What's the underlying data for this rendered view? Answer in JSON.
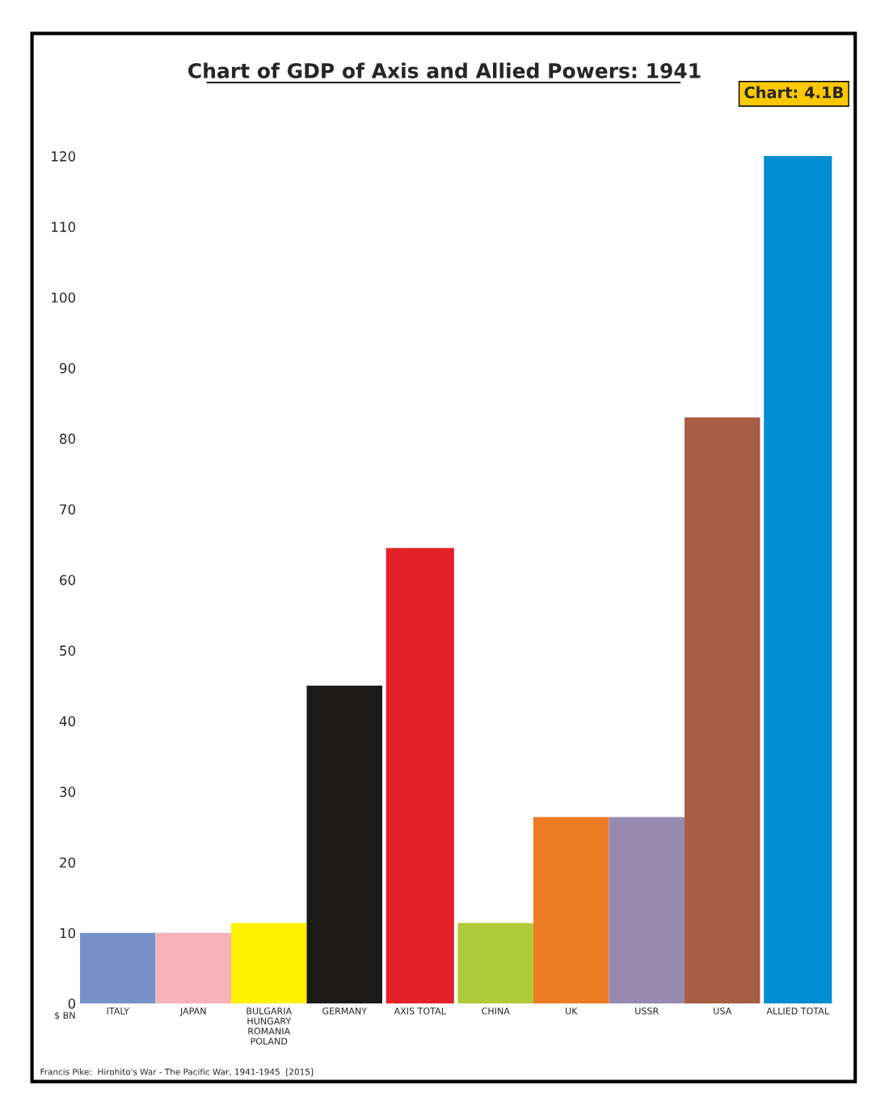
{
  "chart_data": {
    "type": "bar",
    "title": "Chart of GDP of Axis and Allied Powers: 1941",
    "ylabel": "$ BN",
    "annotations": [
      "Chart: 4.1B",
      "Francis Pike:  Hirohito's War - The Pacific War, 1941-1945  [2015]"
    ],
    "categories": [
      "ITALY",
      "JAPAN",
      "BULGARIA\nHUNGARY\nROMANIA\nPOLAND",
      "GERMANY",
      "AXIS TOTAL",
      "CHINA",
      "UK",
      "USSR",
      "USA",
      "ALLIED TOTAL"
    ],
    "values": [
      10,
      10,
      11.4,
      45,
      64.5,
      11.4,
      26.4,
      26.4,
      83,
      120
    ],
    "colors": [
      "#7891c9",
      "#f7b3b6",
      "#fff000",
      "#1c1a19",
      "#e4202a",
      "#b1ca3a",
      "#ee7c24",
      "#968aaf",
      "#a95d46",
      "#008dd4"
    ],
    "ylim": [
      0,
      120
    ],
    "yticks": [
      0,
      10,
      20,
      30,
      40,
      50,
      60,
      70,
      80,
      90,
      100,
      110,
      120
    ],
    "grid": false,
    "legend": false
  }
}
